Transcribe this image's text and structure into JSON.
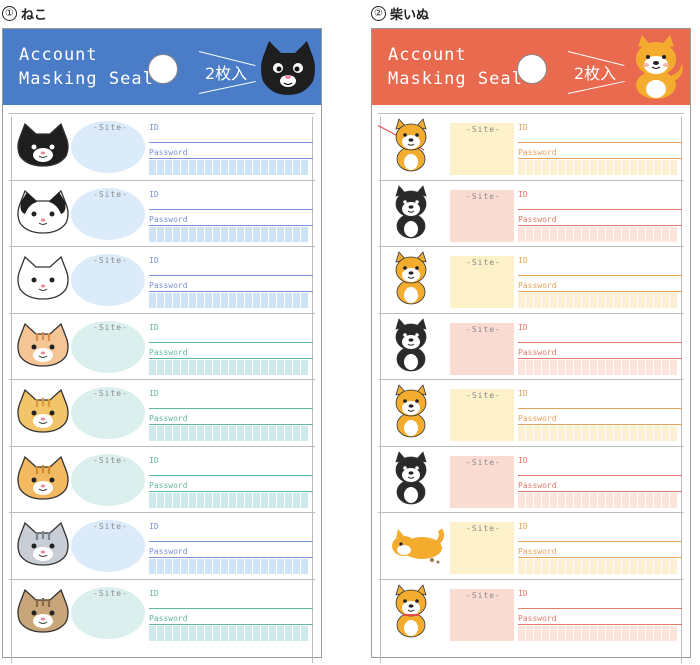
{
  "variants": [
    {
      "number": "①",
      "name": "ねこ",
      "header": {
        "title_line1": "Account",
        "title_line2": "Masking Seal",
        "count": "2枚入",
        "bg_color": "#4a7cc7",
        "mascot_icon": "black-cat-icon"
      },
      "rows": [
        {
          "site_label": "-Site-",
          "id_label": "ID",
          "password_label": "Password",
          "icon": "black-cat-icon",
          "accent": "#7a90d8",
          "bubble": "#dcebfa",
          "boxes": "#cfe3f7"
        },
        {
          "site_label": "-Site-",
          "id_label": "ID",
          "password_label": "Password",
          "icon": "tuxedo-cat-icon",
          "accent": "#7a90d8",
          "bubble": "#dcebfa",
          "boxes": "#cfe3f7"
        },
        {
          "site_label": "-Site-",
          "id_label": "ID",
          "password_label": "Password",
          "icon": "white-cat-icon",
          "accent": "#7a90d8",
          "bubble": "#dcebfa",
          "boxes": "#cfe3f7"
        },
        {
          "site_label": "-Site-",
          "id_label": "ID",
          "password_label": "Password",
          "icon": "calico-cat-icon",
          "accent": "#5fb8a0",
          "bubble": "#dcefef",
          "boxes": "#cde9ec"
        },
        {
          "site_label": "-Site-",
          "id_label": "ID",
          "password_label": "Password",
          "icon": "orange-cat-icon",
          "accent": "#5fb8a0",
          "bubble": "#dcefef",
          "boxes": "#cde9ec"
        },
        {
          "site_label": "-Site-",
          "id_label": "ID",
          "password_label": "Password",
          "icon": "orange-tabby-cat-icon",
          "accent": "#5fb8a0",
          "bubble": "#dcefef",
          "boxes": "#cde9ec"
        },
        {
          "site_label": "-Site-",
          "id_label": "ID",
          "password_label": "Password",
          "icon": "gray-tabby-cat-icon",
          "accent": "#7a90d8",
          "bubble": "#dcebfa",
          "boxes": "#cfe3f7"
        },
        {
          "site_label": "-Site-",
          "id_label": "ID",
          "password_label": "Password",
          "icon": "brown-tabby-cat-icon",
          "accent": "#5fb8a0",
          "bubble": "#dcefef",
          "boxes": "#cde9ec"
        }
      ]
    },
    {
      "number": "②",
      "name": "柴いぬ",
      "header": {
        "title_line1": "Account",
        "title_line2": "Masking Seal",
        "count": "2枚入",
        "bg_color": "#ea6a4f",
        "mascot_icon": "shiba-dog-icon"
      },
      "rows": [
        {
          "site_label": "-Site-",
          "id_label": "ID",
          "password_label": "Password",
          "icon": "shiba-sitting-icon",
          "accent": "#e4a25a",
          "bubble": "#fdf1c9",
          "boxes": "#fdf0d2"
        },
        {
          "site_label": "-Site-",
          "id_label": "ID",
          "password_label": "Password",
          "icon": "black-shiba-sitting-icon",
          "accent": "#e07a6a",
          "bubble": "#fbdcd3",
          "boxes": "#fde5dc"
        },
        {
          "site_label": "-Site-",
          "id_label": "ID",
          "password_label": "Password",
          "icon": "shiba-standing-icon",
          "accent": "#e4a25a",
          "bubble": "#fdf1c9",
          "boxes": "#fdf0d2"
        },
        {
          "site_label": "-Site-",
          "id_label": "ID",
          "password_label": "Password",
          "icon": "black-shiba-bowing-icon",
          "accent": "#e07a6a",
          "bubble": "#fbdcd3",
          "boxes": "#fde5dc"
        },
        {
          "site_label": "-Site-",
          "id_label": "ID",
          "password_label": "Password",
          "icon": "shiba-front-icon",
          "accent": "#e4a25a",
          "bubble": "#fdf1c9",
          "boxes": "#fdf0d2"
        },
        {
          "site_label": "-Site-",
          "id_label": "ID",
          "password_label": "Password",
          "icon": "black-shiba-waving-icon",
          "accent": "#e07a6a",
          "bubble": "#fbdcd3",
          "boxes": "#fde5dc"
        },
        {
          "site_label": "-Site-",
          "id_label": "ID",
          "password_label": "Password",
          "icon": "shiba-lying-icon",
          "accent": "#e4a25a",
          "bubble": "#fdf1c9",
          "boxes": "#fdf0d2"
        },
        {
          "site_label": "-Site-",
          "id_label": "ID",
          "password_label": "Password",
          "icon": "shiba-face-icon",
          "accent": "#e07a6a",
          "bubble": "#fbdcd3",
          "boxes": "#fde5dc"
        }
      ]
    }
  ]
}
